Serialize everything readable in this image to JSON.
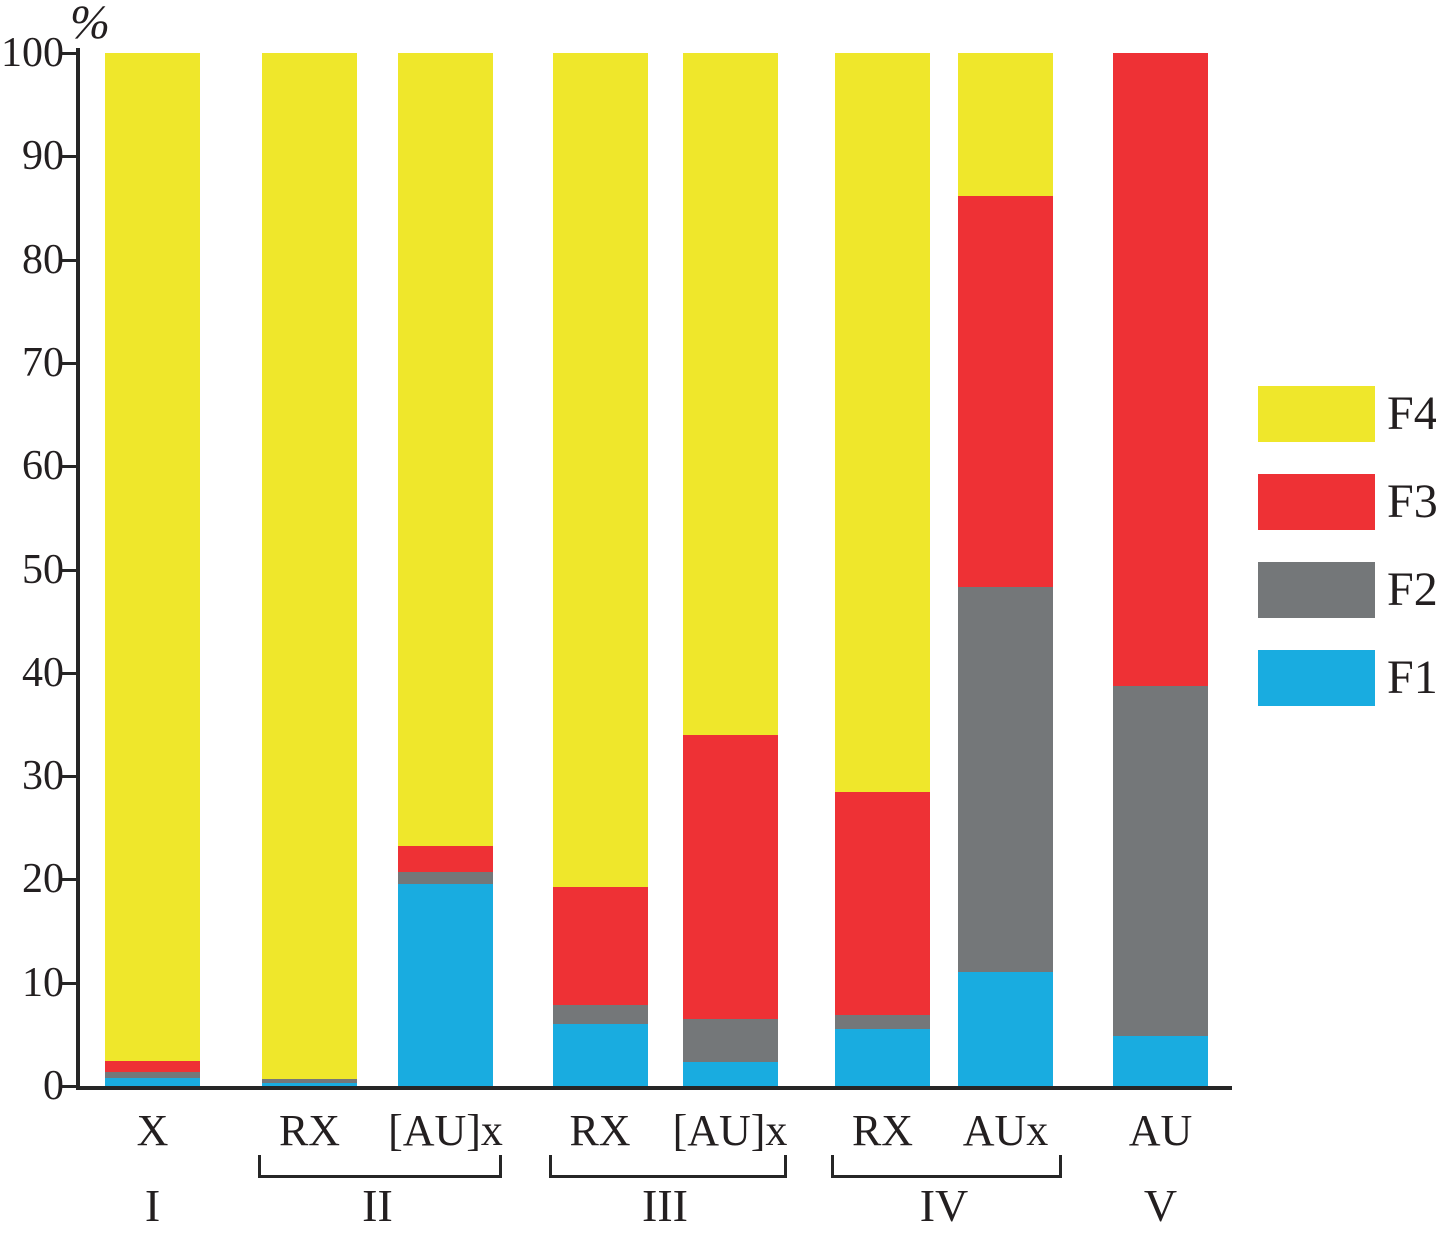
{
  "page": {
    "background": "#ffffff",
    "text_color": "#231f20",
    "axis_color": "#262626"
  },
  "chart_data": {
    "type": "bar",
    "stacked": true,
    "orientation": "vertical",
    "title": "",
    "ylabel": "%",
    "xlabel": "",
    "ylim": [
      0,
      100
    ],
    "yticks": [
      0,
      10,
      20,
      30,
      40,
      50,
      60,
      70,
      80,
      90,
      100
    ],
    "grid": false,
    "categories": [
      "X",
      "RX",
      "[AU]x",
      "RX",
      "[AU]x",
      "RX",
      "AUx",
      "AU"
    ],
    "groups": [
      {
        "label": "I",
        "bar_indexes": [
          0
        ],
        "bracket": false
      },
      {
        "label": "II",
        "bar_indexes": [
          1,
          2
        ],
        "bracket": true
      },
      {
        "label": "III",
        "bar_indexes": [
          3,
          4
        ],
        "bracket": true
      },
      {
        "label": "IV",
        "bar_indexes": [
          5,
          6
        ],
        "bracket": true
      },
      {
        "label": "V",
        "bar_indexes": [
          7
        ],
        "bracket": false
      }
    ],
    "series": [
      {
        "name": "F1",
        "color": "#19ACE0",
        "values": [
          0.8,
          0.3,
          19.6,
          6.0,
          2.3,
          5.5,
          11.0,
          4.8
        ]
      },
      {
        "name": "F2",
        "color": "#747779",
        "values": [
          0.6,
          0.4,
          1.1,
          1.8,
          4.2,
          1.4,
          37.3,
          33.9
        ]
      },
      {
        "name": "F3",
        "color": "#EE3135",
        "values": [
          1.0,
          0.0,
          2.5,
          11.5,
          27.5,
          21.6,
          37.9,
          61.3
        ]
      },
      {
        "name": "F4",
        "color": "#EFE72B",
        "values": [
          97.6,
          99.3,
          76.8,
          80.7,
          66.0,
          71.5,
          13.8,
          0.0
        ]
      }
    ],
    "legend": {
      "position": "right",
      "entries": [
        "F4",
        "F3",
        "F2",
        "F1"
      ]
    }
  }
}
